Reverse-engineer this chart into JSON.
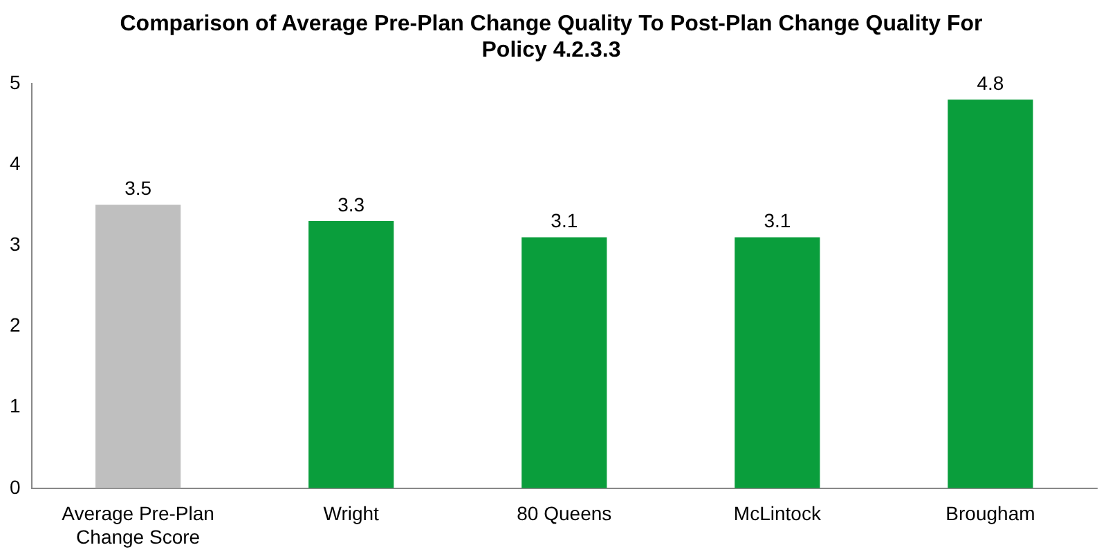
{
  "chart_data": {
    "type": "bar",
    "title": "Comparison of Average Pre-Plan Change Quality To Post-Plan Change Quality For Policy 4.2.3.3",
    "categories": [
      "Average Pre-Plan Change Score",
      "Wright",
      "80 Queens",
      "McLintock",
      "Brougham"
    ],
    "values": [
      3.5,
      3.3,
      3.1,
      3.1,
      4.8
    ],
    "colors": [
      "#bfbfbf",
      "#0a9e3c",
      "#0a9e3c",
      "#0a9e3c",
      "#0a9e3c"
    ],
    "ylim": [
      0,
      5
    ],
    "yticks": [
      0,
      1,
      2,
      3,
      4,
      5
    ],
    "grid": false,
    "data_labels": true
  }
}
